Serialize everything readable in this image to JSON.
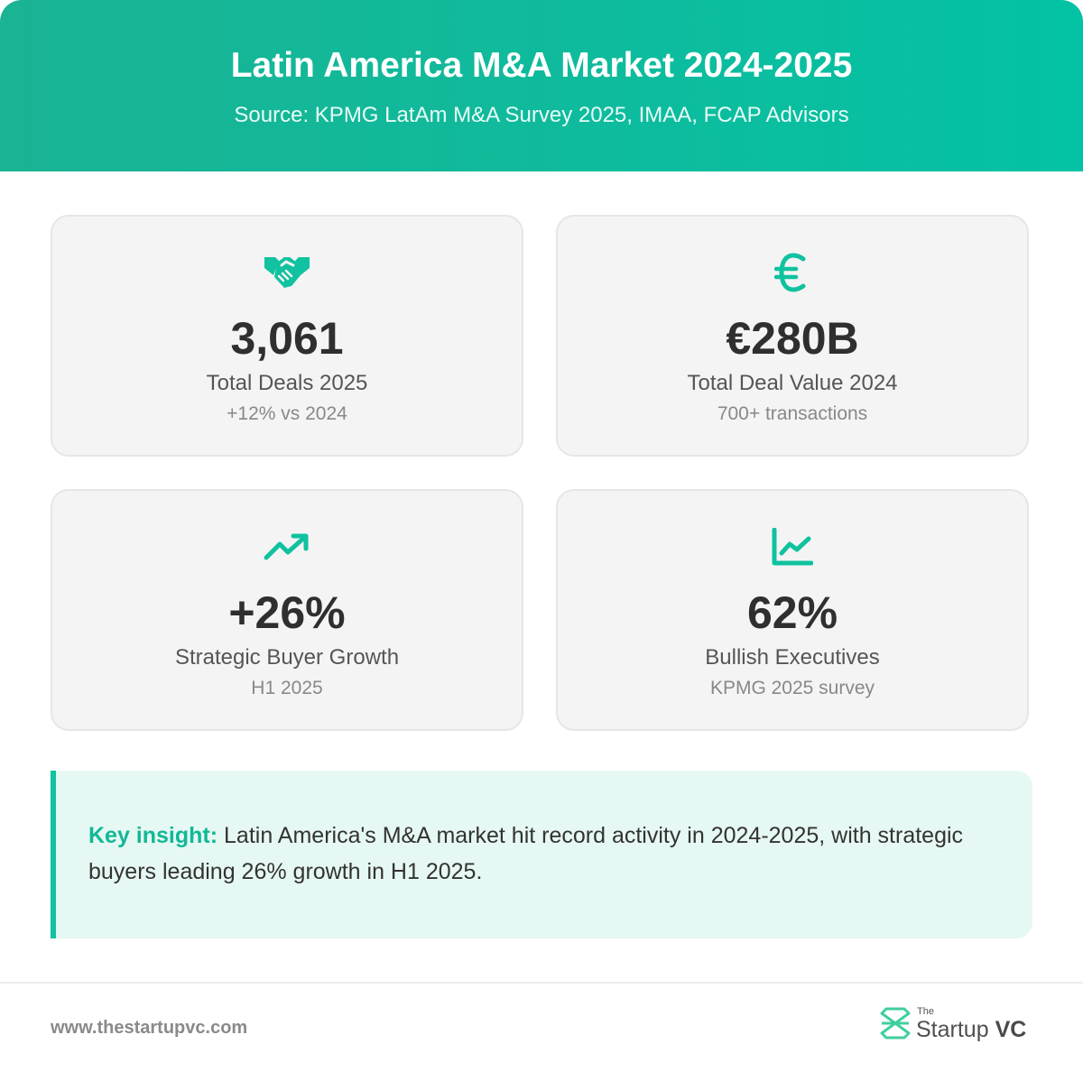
{
  "header": {
    "title": "Latin America M&A Market 2024-2025",
    "subtitle": "Source: KPMG LatAm M&A Survey 2025, IMAA, FCAP Advisors"
  },
  "stats": [
    {
      "icon": "handshake-icon",
      "value": "3,061",
      "label": "Total Deals 2025",
      "sub": "+12% vs 2024"
    },
    {
      "icon": "euro-icon",
      "value": "€280B",
      "label": "Total Deal Value 2024",
      "sub": "700+ transactions"
    },
    {
      "icon": "trending-up-icon",
      "value": "+26%",
      "label": "Strategic Buyer Growth",
      "sub": "H1 2025"
    },
    {
      "icon": "line-chart-icon",
      "value": "62%",
      "label": "Bullish Executives",
      "sub": "KPMG 2025 survey"
    }
  ],
  "insight": {
    "key_label": "Key insight:",
    "text": " Latin America's M&A market hit record activity in 2024-2025, with strategic buyers leading 26% growth in H1 2025."
  },
  "footer": {
    "url": "www.thestartupvc.com",
    "brand_the": "The",
    "brand_startup": "Startup",
    "brand_vc": "VC"
  },
  "colors": {
    "accent": "#10c29f",
    "header_start": "#1ab394",
    "header_end": "#04c2a4",
    "card_bg": "#f4f4f4",
    "insight_bg": "#e6f8f3"
  }
}
